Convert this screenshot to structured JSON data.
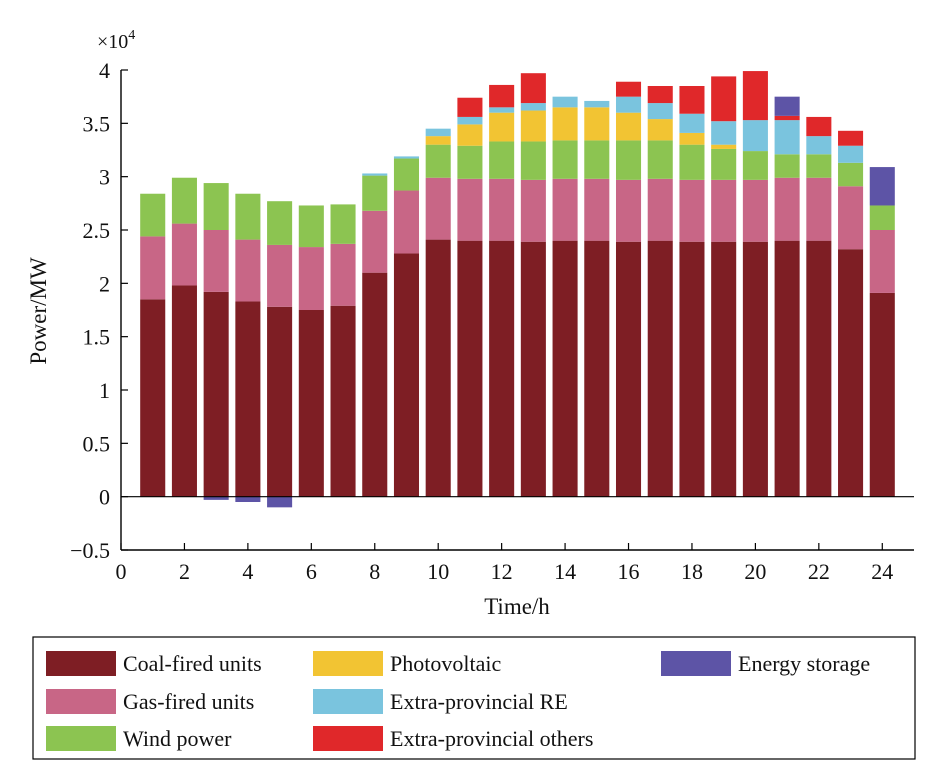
{
  "chart_data": {
    "type": "bar",
    "stacked": true,
    "title": "",
    "xlabel": "Time/h",
    "ylabel": "Power/MW",
    "y_multiplier_label": "×10",
    "y_multiplier_exponent": "4",
    "xlim": [
      0,
      25
    ],
    "ylim": [
      -0.5,
      4
    ],
    "x_ticks": [
      0,
      2,
      4,
      6,
      8,
      10,
      12,
      14,
      16,
      18,
      20,
      22,
      24
    ],
    "y_ticks": [
      -0.5,
      0,
      0.5,
      1,
      1.5,
      2,
      2.5,
      3,
      3.5,
      4
    ],
    "y_tick_labels": [
      "−0.5",
      "0",
      "0.5",
      "1",
      "1.5",
      "2",
      "2.5",
      "3",
      "3.5",
      "4"
    ],
    "x": [
      1,
      2,
      3,
      4,
      5,
      6,
      7,
      8,
      9,
      10,
      11,
      12,
      13,
      14,
      15,
      16,
      17,
      18,
      19,
      20,
      21,
      22,
      23,
      24
    ],
    "legend_position": "below",
    "series": [
      {
        "name": "Coal-fired units",
        "color": "#7e1e24",
        "values": [
          1.85,
          1.98,
          1.92,
          1.83,
          1.78,
          1.75,
          1.79,
          2.1,
          2.28,
          2.41,
          2.4,
          2.4,
          2.39,
          2.4,
          2.4,
          2.39,
          2.4,
          2.39,
          2.39,
          2.39,
          2.4,
          2.4,
          2.32,
          1.91
        ]
      },
      {
        "name": "Gas-fired units",
        "color": "#c86686",
        "values": [
          0.59,
          0.58,
          0.58,
          0.58,
          0.58,
          0.59,
          0.58,
          0.58,
          0.59,
          0.58,
          0.58,
          0.58,
          0.58,
          0.58,
          0.58,
          0.58,
          0.58,
          0.58,
          0.58,
          0.58,
          0.59,
          0.59,
          0.59,
          0.59
        ]
      },
      {
        "name": "Wind power",
        "color": "#8cc451",
        "values": [
          0.4,
          0.43,
          0.44,
          0.43,
          0.41,
          0.39,
          0.37,
          0.33,
          0.3,
          0.31,
          0.31,
          0.35,
          0.36,
          0.36,
          0.36,
          0.37,
          0.36,
          0.33,
          0.29,
          0.27,
          0.22,
          0.22,
          0.22,
          0.23
        ]
      },
      {
        "name": "Photovoltaic",
        "color": "#f2c433",
        "values": [
          0,
          0,
          0,
          0,
          0,
          0,
          0,
          0,
          0,
          0.08,
          0.2,
          0.27,
          0.29,
          0.31,
          0.31,
          0.26,
          0.2,
          0.11,
          0.04,
          0,
          0,
          0,
          0,
          0
        ]
      },
      {
        "name": "Extra-provincial RE",
        "color": "#7ac4de",
        "values": [
          0,
          0,
          0,
          0,
          0,
          0,
          0,
          0.02,
          0.02,
          0.07,
          0.07,
          0.05,
          0.07,
          0.1,
          0.06,
          0.15,
          0.15,
          0.18,
          0.22,
          0.29,
          0.32,
          0.17,
          0.16,
          0
        ]
      },
      {
        "name": "Extra-provincial others",
        "color": "#e0282a",
        "values": [
          0,
          0,
          0,
          0,
          0,
          0,
          0,
          0,
          0,
          0,
          0.18,
          0.21,
          0.28,
          0,
          0,
          0.14,
          0.16,
          0.26,
          0.42,
          0.46,
          0.04,
          0.18,
          0.14,
          0
        ]
      },
      {
        "name": "Energy storage",
        "color": "#5d54a6",
        "values": [
          0,
          0,
          -0.03,
          -0.05,
          -0.1,
          0,
          0,
          0,
          0,
          0,
          0,
          0,
          0,
          0,
          0,
          0,
          0,
          0,
          0,
          0,
          0.18,
          0,
          0,
          0.36
        ]
      }
    ]
  }
}
